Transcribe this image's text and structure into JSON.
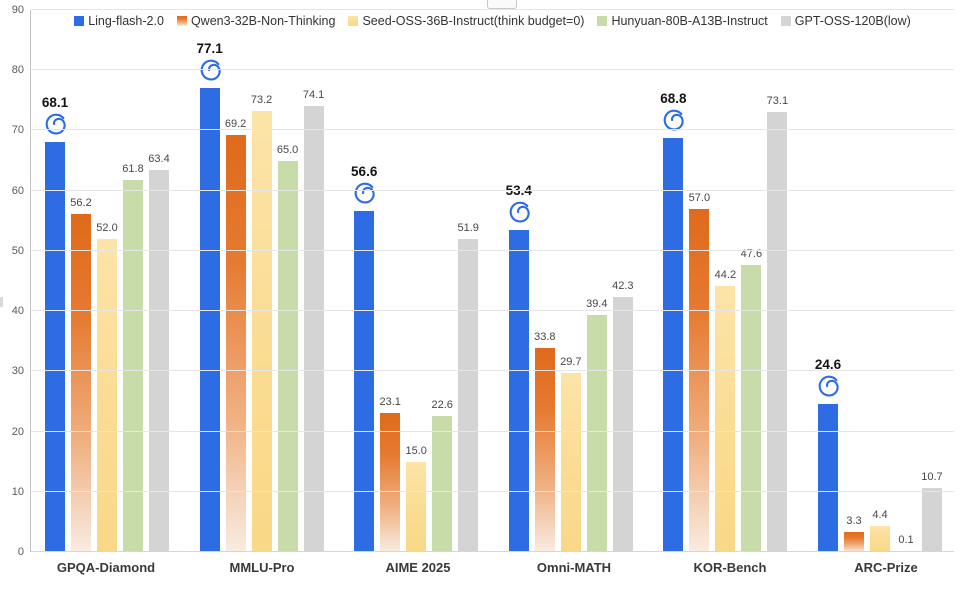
{
  "colors": {
    "ling_blue": "#2e6ce3",
    "qwen_orange_top": "#df6a1b",
    "qwen_orange_bottom": "#f8ece1",
    "seed_yellow": "#fadc92",
    "hunyuan_green": "#c7dca9",
    "gpt_gray": "#d4d4d4",
    "gridline": "#e6e6e6",
    "axis_line": "#c3c3c3",
    "value_label": "#474747",
    "highlight_label": "#141414",
    "category_label": "#3a3a3a",
    "tick_label": "#5a5a5a",
    "legend_text": "#333333"
  },
  "chart_data": {
    "type": "bar",
    "title": "",
    "categories": [
      "GPQA-Diamond",
      "MMLU-Pro",
      "AIME 2025",
      "Omni-MATH",
      "KOR-Bench",
      "ARC-Prize"
    ],
    "series": [
      {
        "name": "Ling-flash-2.0",
        "values": [
          68.1,
          77.1,
          56.6,
          53.4,
          68.8,
          24.6
        ],
        "value_labels": [
          "68.1",
          "77.1",
          "56.6",
          "53.4",
          "68.8",
          "24.6"
        ],
        "highlight": true,
        "icon": "ling-swirl-icon",
        "color": "#2e6ce3"
      },
      {
        "name": "Qwen3-32B-Non-Thinking",
        "values": [
          56.2,
          69.2,
          23.1,
          33.8,
          57.0,
          3.3
        ],
        "value_labels": [
          "56.2",
          "69.2",
          "23.1",
          "33.8",
          "57.0",
          "3.3"
        ],
        "highlight": false,
        "icon": null,
        "color": "#df6a1b"
      },
      {
        "name": "Seed-OSS-36B-Instruct(think budget=0)",
        "values": [
          52.0,
          73.2,
          15.0,
          29.7,
          44.2,
          4.4
        ],
        "value_labels": [
          "52.0",
          "73.2",
          "15.0",
          "29.7",
          "44.2",
          "4.4"
        ],
        "highlight": false,
        "icon": null,
        "color": "#fadc92"
      },
      {
        "name": "Hunyuan-80B-A13B-Instruct",
        "values": [
          61.8,
          65.0,
          22.6,
          39.4,
          47.6,
          0.1
        ],
        "value_labels": [
          "61.8",
          "65.0",
          "22.6",
          "39.4",
          "47.6",
          "0.1"
        ],
        "highlight": false,
        "icon": null,
        "color": "#c7dca9"
      },
      {
        "name": "GPT-OSS-120B(low)",
        "values": [
          63.4,
          74.1,
          51.9,
          42.3,
          73.1,
          10.7
        ],
        "value_labels": [
          "63.4",
          "74.1",
          "51.9",
          "42.3",
          "73.1",
          "10.7"
        ],
        "highlight": false,
        "icon": null,
        "color": "#d4d4d4"
      }
    ],
    "xlabel": "",
    "ylabel": "",
    "ylim": [
      0,
      90
    ],
    "yticks": [
      0,
      10,
      20,
      30,
      40,
      50,
      60,
      70,
      80,
      90
    ],
    "grid": true,
    "legend_position": "top-center"
  }
}
